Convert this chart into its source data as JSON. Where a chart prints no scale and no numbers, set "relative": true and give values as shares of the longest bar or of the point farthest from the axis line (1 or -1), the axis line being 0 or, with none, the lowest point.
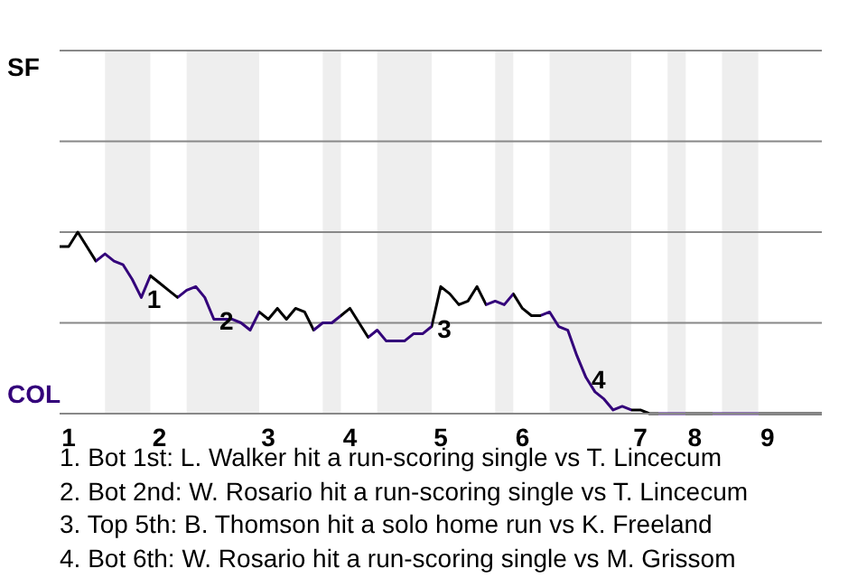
{
  "chart_data": {
    "type": "line",
    "relative": true,
    "categories": [
      null,
      "1",
      null,
      null,
      null,
      null,
      null,
      null,
      null,
      null,
      null,
      "2",
      null,
      null,
      null,
      null,
      null,
      null,
      null,
      null,
      null,
      null,
      null,
      "3",
      null,
      null,
      null,
      null,
      null,
      null,
      null,
      null,
      "4",
      null,
      null,
      null,
      null,
      null,
      null,
      null,
      null,
      null,
      "5",
      null,
      null,
      null,
      null,
      null,
      null,
      null,
      null,
      "6",
      null,
      null,
      null,
      null,
      null,
      null,
      null,
      null,
      null,
      null,
      null,
      null,
      "7",
      null,
      null,
      null,
      null,
      null,
      "8",
      null,
      null,
      null,
      null,
      null,
      null,
      null,
      "9",
      null,
      null,
      null,
      null,
      null,
      null
    ],
    "series": [
      {
        "color": "#000000",
        "values": [
          0.92,
          0.92,
          1,
          0.92,
          0.84,
          0.88,
          0.84,
          0.82,
          0.74,
          0.64,
          0.76,
          0.72,
          0.68,
          0.64,
          0.68,
          0.7,
          0.64,
          0.52,
          0.52,
          0.52,
          0.5,
          0.46,
          0.56,
          0.52,
          0.58,
          0.52,
          0.58,
          0.56,
          0.46,
          0.5,
          0.5,
          0.54,
          0.58,
          0.5,
          0.42,
          0.46,
          0.4,
          0.4,
          0.4,
          0.44,
          0.44,
          0.48,
          0.7,
          0.66,
          0.6,
          0.62,
          0.7,
          0.6,
          0.62,
          0.6,
          0.66,
          0.58,
          0.54,
          0.54,
          0.56,
          0.48,
          0.46,
          0.32,
          0.2,
          0.12,
          0.08,
          0.02,
          0.04,
          0.02,
          0.02,
          0,
          0,
          0,
          0,
          0,
          0,
          0,
          0,
          0,
          0,
          0,
          0,
          0,
          0,
          0,
          0,
          0,
          0,
          0,
          0
        ],
        "colors": [
          "#000000",
          "#000000",
          "#000000",
          "#000000",
          "#000000",
          "#33007a",
          "#33007a",
          "#33007a",
          "#33007a",
          "#33007a",
          "#33007a",
          "#000000",
          "#000000",
          "#000000",
          "#33007a",
          "#33007a",
          "#33007a",
          "#33007a",
          "#33007a",
          "#33007a",
          "#33007a",
          "#33007a",
          "#33007a",
          "#000000",
          "#000000",
          "#000000",
          "#000000",
          "#000000",
          "#000000",
          "#33007a",
          "#33007a",
          "#33007a",
          "#000000",
          "#000000",
          "#000000",
          "#33007a",
          "#33007a",
          "#33007a",
          "#33007a",
          "#33007a",
          "#33007a",
          "#33007a",
          "#000000",
          "#000000",
          "#000000",
          "#000000",
          "#000000",
          "#000000",
          "#33007a",
          "#33007a",
          "#33007a",
          "#000000",
          "#000000",
          "#000000",
          "#33007a",
          "#33007a",
          "#33007a",
          "#33007a",
          "#33007a",
          "#33007a",
          "#33007a",
          "#33007a",
          "#33007a",
          "#33007a",
          "#000000",
          "#000000",
          "#000000",
          "#33007a",
          "#33007a",
          "#33007a",
          "#000000",
          "#000000",
          "#000000",
          "#33007a",
          "#33007a",
          "#33007a",
          "#33007a",
          "#33007a",
          "#000000",
          "#000000",
          "#000000",
          "#000000",
          "#000000",
          "#000000",
          "#000000"
        ]
      }
    ],
    "ref_lines": [
      {
        "axis": "y",
        "value": 0.5,
        "color": "#888888"
      },
      {
        "axis": "y",
        "value": 1,
        "color": "#888888"
      },
      {
        "axis": "y",
        "value": 1.5,
        "color": "#888888"
      },
      {
        "axis": "y",
        "value": 2,
        "color": "#888888"
      }
    ],
    "annotations": [
      "SF",
      "COL",
      "1",
      "2",
      "3",
      "4",
      "1. Bot 1st: L. Walker hit a run-scoring single vs T. Lincecum",
      "2. Bot 2nd: W. Rosario hit a run-scoring single vs T. Lincecum",
      "3. Top 5th: B. Thomson hit a solo home run vs K. Freeland",
      "4. Bot 6th: W. Rosario hit a run-scoring single vs M. Grissom"
    ]
  }
}
